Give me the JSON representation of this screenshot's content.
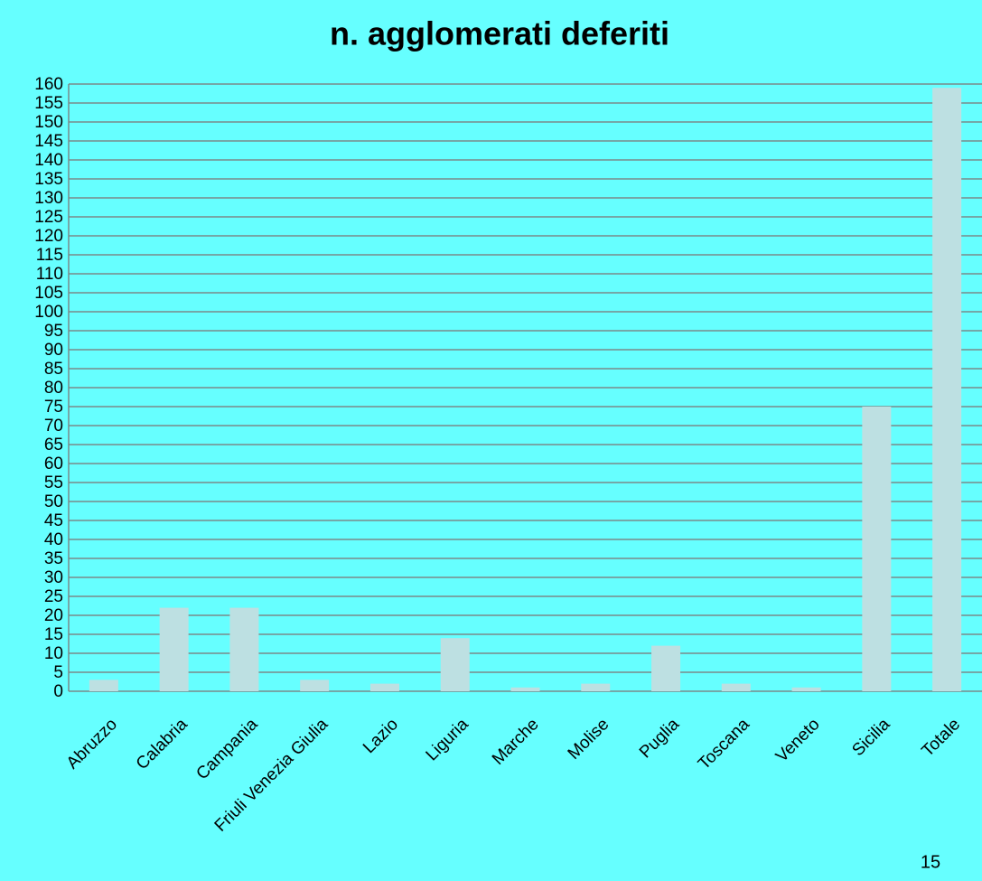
{
  "chart_data": {
    "type": "bar",
    "title": "n. agglomerati deferiti",
    "categories": [
      "Abruzzo",
      "Calabria",
      "Campania",
      "Friuli Venezia Giulia",
      "Lazio",
      "Liguria",
      "Marche",
      "Molise",
      "Puglia",
      "Toscana",
      "Veneto",
      "Sicilia",
      "Totale"
    ],
    "values": [
      3,
      22,
      22,
      3,
      2,
      14,
      1,
      2,
      12,
      2,
      1,
      75,
      159
    ],
    "color": "#bde0e2",
    "ylim": [
      0,
      160
    ],
    "yticks": [
      0,
      5,
      10,
      15,
      20,
      25,
      30,
      35,
      40,
      45,
      50,
      55,
      60,
      65,
      70,
      75,
      80,
      85,
      90,
      95,
      100,
      105,
      110,
      115,
      120,
      125,
      130,
      135,
      140,
      145,
      150,
      155,
      160
    ],
    "grid": true
  },
  "page_number": "15"
}
